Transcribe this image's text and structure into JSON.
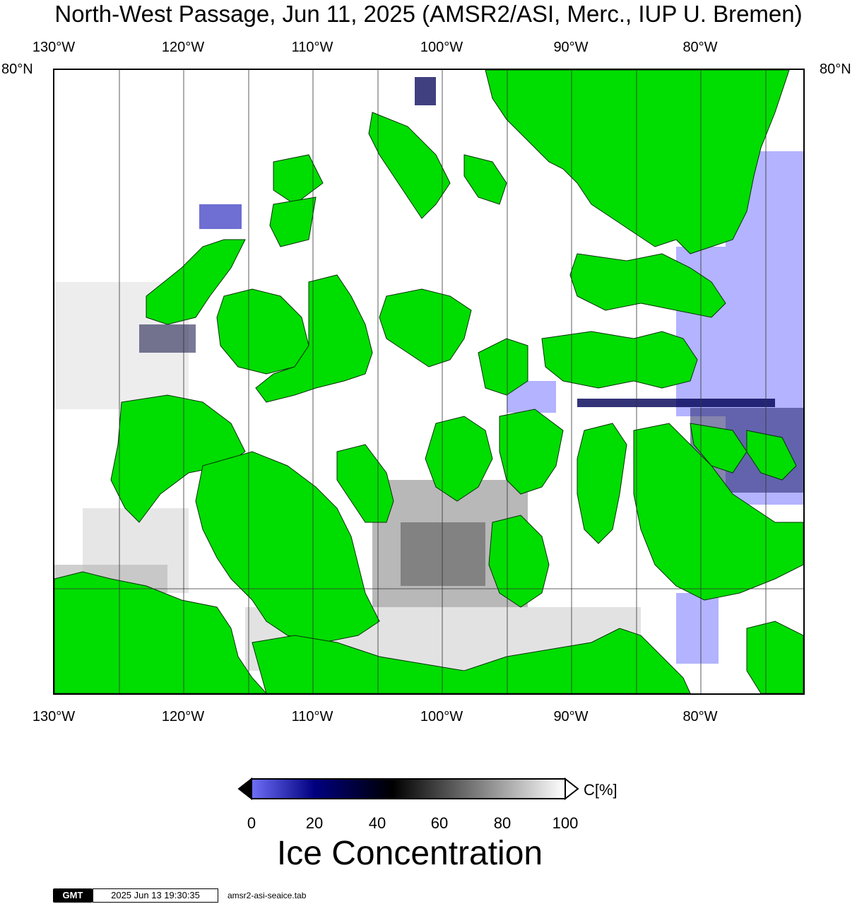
{
  "title": "North-West Passage, Jun 11, 2025 (AMSR2/ASI, Merc., IUP U. Bremen)",
  "longitude_labels": [
    "130°W",
    "120°W",
    "110°W",
    "100°W",
    "90°W",
    "80°W"
  ],
  "latitude_label": "80°N",
  "colorbar": {
    "unit": "C[%]",
    "ticks": [
      "0",
      "20",
      "40",
      "60",
      "80",
      "100"
    ],
    "title": "Ice Concentration",
    "colors": {
      "low": "#6f6ff8",
      "mid_low": "#000080",
      "mid": "#000000",
      "high": "#ffffff"
    }
  },
  "land_color": "#00dd00",
  "open_water_ice_color": "#b3b3ff",
  "footer": {
    "logo": "GMT",
    "timestamp": "2025 Jun 13 19:30:35",
    "filename": "amsr2-asi-seaice.tab"
  }
}
